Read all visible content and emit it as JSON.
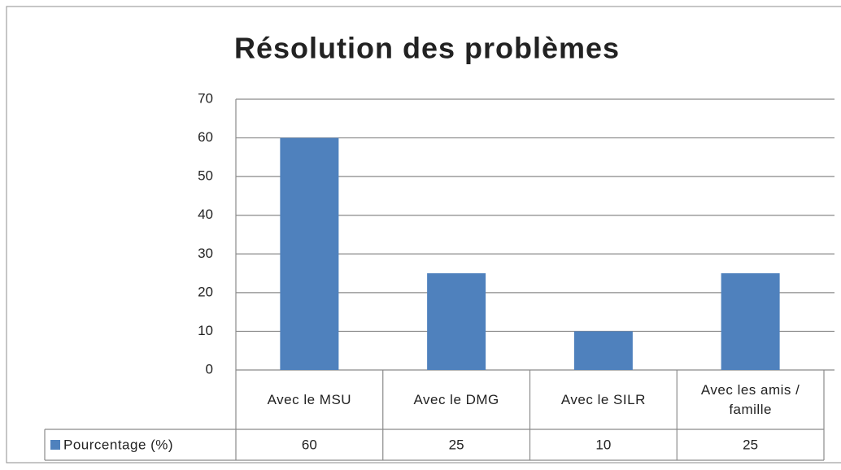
{
  "chart_data": {
    "type": "bar",
    "title": "Résolution des problèmes",
    "categories": [
      "Avec le MSU",
      "Avec le DMG",
      "Avec le SILR",
      "Avec les amis / famille"
    ],
    "series": [
      {
        "name": "Pourcentage (%)",
        "color": "#4f81bd",
        "values": [
          60,
          25,
          10,
          25
        ]
      }
    ],
    "ylim": [
      0,
      70
    ],
    "yticks": [
      0,
      10,
      20,
      30,
      40,
      50,
      60,
      70
    ],
    "grid": true,
    "legend": "left"
  }
}
